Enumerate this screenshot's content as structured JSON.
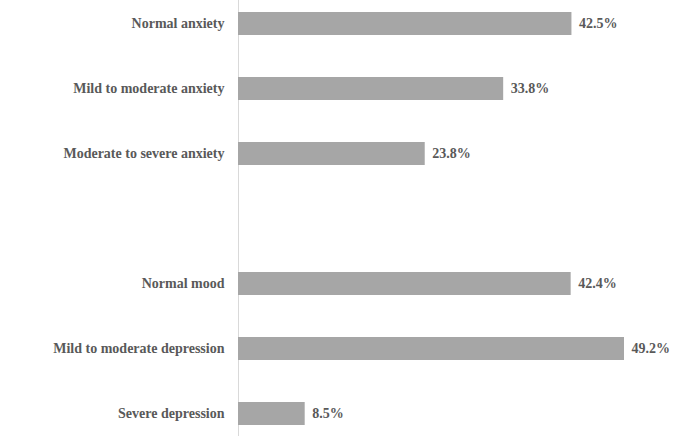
{
  "chart_data": {
    "type": "bar",
    "orientation": "horizontal",
    "categories": [
      "Normal anxiety",
      "Mild to moderate anxiety",
      "Moderate to severe anxiety",
      null,
      "Normal mood",
      "Mild to moderate depression",
      "Severe depression"
    ],
    "values": [
      42.5,
      33.8,
      23.8,
      null,
      42.4,
      49.2,
      8.5
    ],
    "value_labels": [
      "42.5%",
      "33.8%",
      "23.8%",
      null,
      "42.4%",
      "49.2%",
      "8.5%"
    ],
    "color": "#a6a6a6",
    "xlim": [
      0,
      49.2
    ],
    "data_labels": true,
    "tick_labels": "y",
    "grid": false
  }
}
